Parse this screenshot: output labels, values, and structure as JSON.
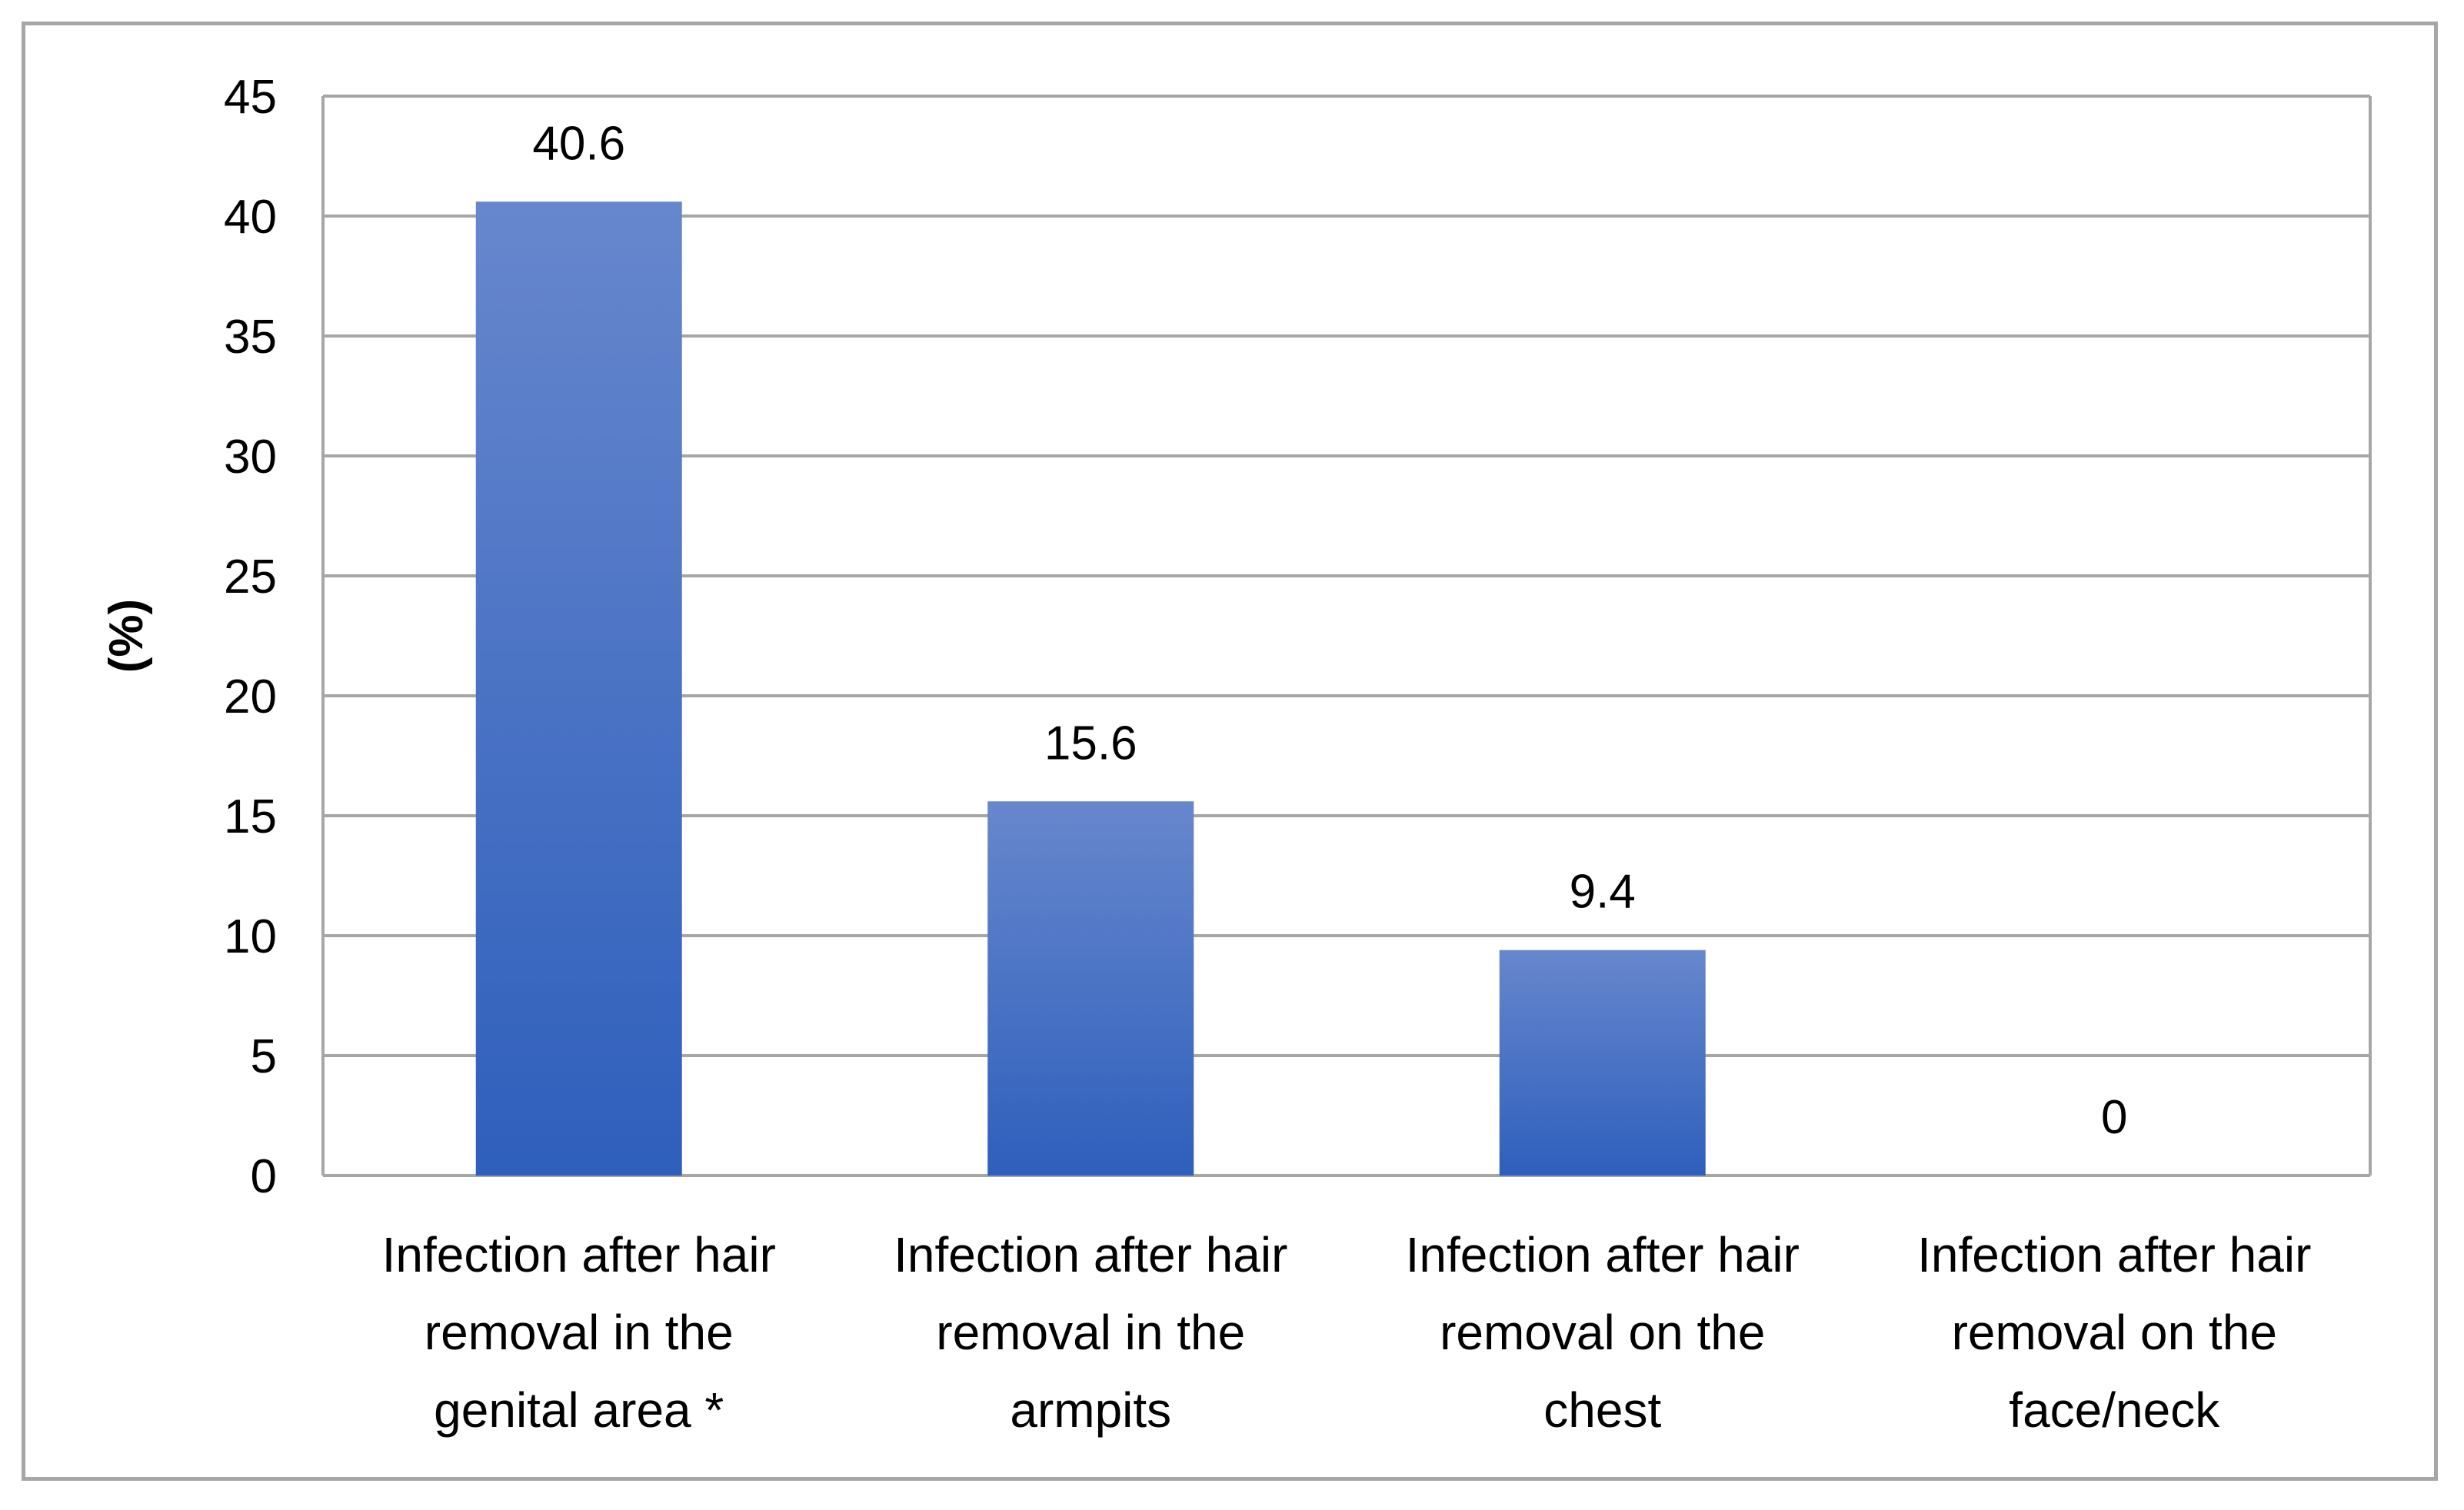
{
  "chart_data": {
    "type": "bar",
    "title": "",
    "xlabel": "",
    "ylabel": "(%)",
    "ylim": [
      0,
      45
    ],
    "yticks": [
      0,
      5,
      10,
      15,
      20,
      25,
      30,
      35,
      40,
      45
    ],
    "grid": true,
    "legend": "none",
    "categories": [
      [
        "Infection after hair",
        "removal in the",
        "genital area *"
      ],
      [
        "Infection after hair",
        "removal in the",
        "armpits"
      ],
      [
        "Infection after hair",
        "removal on the",
        "chest"
      ],
      [
        "Infection after hair",
        "removal on the",
        "face/neck"
      ]
    ],
    "values": [
      40.6,
      15.6,
      9.4,
      0
    ],
    "data_labels": [
      "40.6",
      "15.6",
      "9.4",
      "0"
    ],
    "colors": {
      "bar_top": "#6787cd",
      "bar_bottom": "#2e5fbc",
      "grid": "#a6a6a6",
      "frame": "#a6a6a6"
    }
  }
}
